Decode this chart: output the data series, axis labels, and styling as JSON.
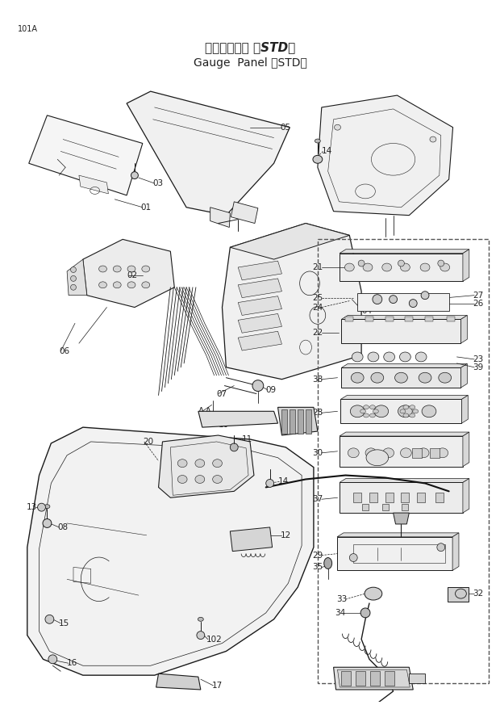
{
  "title_jp": "ゲージパネル （STD）",
  "title_en": "Gauge  Panel （STD）",
  "page_label": "101A",
  "bg_color": "#ffffff",
  "lc": "#1a1a1a",
  "tc": "#222222",
  "fig_width": 6.2,
  "fig_height": 8.73,
  "dpi": 100
}
